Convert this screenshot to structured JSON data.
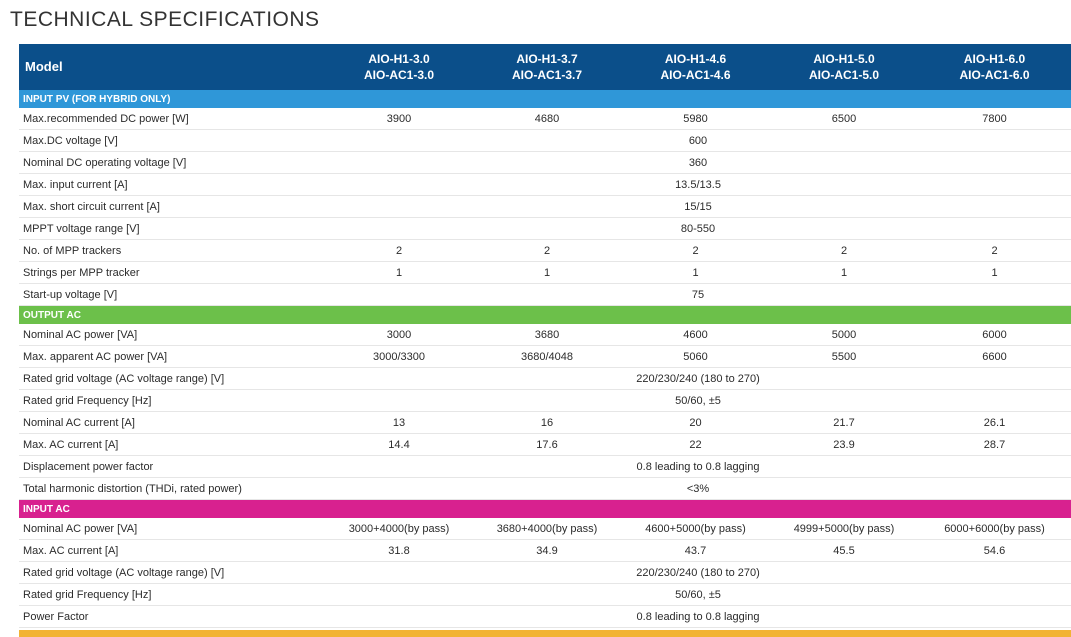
{
  "page_title": "TECHNICAL SPECIFICATIONS",
  "colors": {
    "header_bg": "#0b4f8a",
    "section_input_pv": "#2f97d8",
    "section_output_ac": "#6cc04a",
    "section_input_ac": "#d8218f",
    "section_next": "#f2b334"
  },
  "header": {
    "label": "Model",
    "models": [
      [
        "AIO-H1-3.0",
        "AIO-AC1-3.0"
      ],
      [
        "AIO-H1-3.7",
        "AIO-AC1-3.7"
      ],
      [
        "AIO-H1-4.6",
        "AIO-AC1-4.6"
      ],
      [
        "AIO-H1-5.0",
        "AIO-AC1-5.0"
      ],
      [
        "AIO-H1-6.0",
        "AIO-AC1-6.0"
      ]
    ]
  },
  "sections": [
    {
      "title": "INPUT PV (FOR HYBRID ONLY)",
      "color": "#2f97d8",
      "rows": [
        {
          "label": "Max.recommended DC power [W]",
          "values": [
            "3900",
            "4680",
            "5980",
            "6500",
            "7800"
          ]
        },
        {
          "label": "Max.DC voltage [V]",
          "common": "600"
        },
        {
          "label": "Nominal DC operating voltage [V]",
          "common": "360"
        },
        {
          "label": "Max. input current [A]",
          "common": "13.5/13.5"
        },
        {
          "label": "Max. short circuit current [A]",
          "common": "15/15"
        },
        {
          "label": "MPPT voltage range [V]",
          "common": "80-550"
        },
        {
          "label": "No. of MPP trackers",
          "values": [
            "2",
            "2",
            "2",
            "2",
            "2"
          ]
        },
        {
          "label": "Strings per MPP tracker",
          "values": [
            "1",
            "1",
            "1",
            "1",
            "1"
          ]
        },
        {
          "label": "Start-up voltage [V]",
          "common": "75"
        }
      ]
    },
    {
      "title": "OUTPUT AC",
      "color": "#6cc04a",
      "rows": [
        {
          "label": "Nominal AC power [VA]",
          "values": [
            "3000",
            "3680",
            "4600",
            "5000",
            "6000"
          ]
        },
        {
          "label": "Max. apparent AC power [VA]",
          "values": [
            "3000/3300",
            "3680/4048",
            "5060",
            "5500",
            "6600"
          ]
        },
        {
          "label": "Rated grid voltage (AC voltage range) [V]",
          "common": "220/230/240 (180  to 270)"
        },
        {
          "label": "Rated grid Frequency [Hz]",
          "common": "50/60, ±5"
        },
        {
          "label": "Nominal AC current [A]",
          "values": [
            "13",
            "16",
            "20",
            "21.7",
            "26.1"
          ]
        },
        {
          "label": "Max. AC current [A]",
          "values": [
            "14.4",
            "17.6",
            "22",
            "23.9",
            "28.7"
          ]
        },
        {
          "label": "Displacement power factor",
          "common": "0.8 leading to 0.8 lagging"
        },
        {
          "label": "Total harmonic distortion (THDi, rated power)",
          "common": "<3%"
        }
      ]
    },
    {
      "title": "INPUT AC",
      "color": "#d8218f",
      "rows": [
        {
          "label": "Nominal AC power [VA]",
          "values": [
            "3000+4000(by pass)",
            "3680+4000(by pass)",
            "4600+5000(by pass)",
            "4999+5000(by pass)",
            "6000+6000(by pass)"
          ]
        },
        {
          "label": "Max. AC current [A]",
          "values": [
            "31.8",
            "34.9",
            "43.7",
            "45.5",
            "54.6"
          ]
        },
        {
          "label": "Rated grid voltage (AC voltage range) [V]",
          "common": "220/230/240  (180  to 270)"
        },
        {
          "label": "Rated grid Frequency [Hz]",
          "common": "50/60, ±5"
        },
        {
          "label": "Power Factor",
          "common": "0.8 leading to 0.8 lagging"
        }
      ]
    }
  ]
}
